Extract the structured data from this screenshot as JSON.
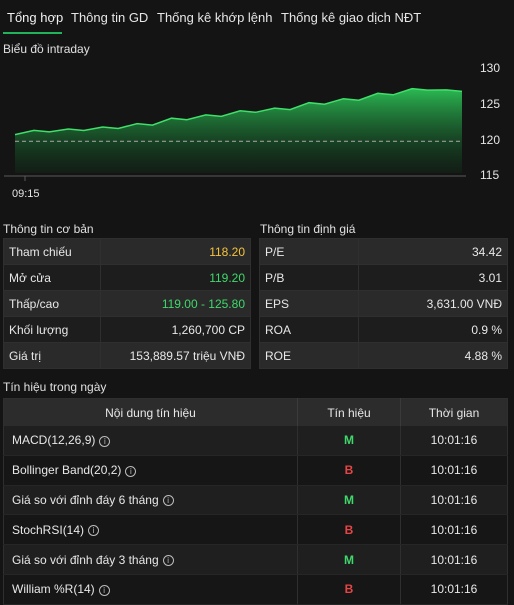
{
  "tabs": [
    {
      "label": "Tổng hợp",
      "active": true
    },
    {
      "label": "Thông tin GD",
      "active": false
    },
    {
      "label": "Thống kê khớp lệnh",
      "active": false
    },
    {
      "label": "Thống kê giao dịch NĐT",
      "active": false
    }
  ],
  "chart_title": "Biểu đồ intraday",
  "chart_data": {
    "type": "area",
    "title": "",
    "x_tick_labels": [
      "09:15"
    ],
    "y_tick_labels": [
      "130",
      "125",
      "120",
      "115"
    ],
    "ylim": [
      113.5,
      131
    ],
    "reference_line": 118.2,
    "series": [
      {
        "values": [
          119.2,
          119.6,
          119.8,
          120.1,
          120.6,
          121.4,
          121.9,
          122.5,
          122.9,
          123.7,
          124.3,
          125.1,
          125.8,
          125.6
        ]
      }
    ],
    "colors": {
      "area": "#2ecc5a",
      "line": "#3ee06a",
      "reference": "#9a9a9a"
    }
  },
  "basic_info": {
    "title": "Thông tin cơ bản",
    "rows": [
      {
        "label": "Tham chiếu",
        "value": "118.20"
      },
      {
        "label": "Mở cửa",
        "value": "119.20"
      },
      {
        "label": "Thấp/cao",
        "value": "119.00 - 125.80"
      },
      {
        "label": "Khối lượng",
        "value": "1,260,700 CP"
      },
      {
        "label": "Giá trị",
        "value": "153,889.57 triệu VNĐ"
      }
    ]
  },
  "valuation": {
    "title": "Thông tin định giá",
    "rows": [
      {
        "label": "P/E",
        "value": "34.42"
      },
      {
        "label": "P/B",
        "value": "3.01"
      },
      {
        "label": "EPS",
        "value": "3,631.00 VNĐ"
      },
      {
        "label": "ROA",
        "value": "0.9 %"
      },
      {
        "label": "ROE",
        "value": "4.88 %"
      }
    ]
  },
  "signals": {
    "title": "Tín hiệu trong ngày",
    "headers": [
      "Nội dung tín hiệu",
      "Tín hiệu",
      "Thời gian"
    ],
    "info_glyph": "i",
    "rows": [
      {
        "name": "MACD(12,26,9)",
        "signal": "M",
        "time": "10:01:16"
      },
      {
        "name": "Bollinger Band(20,2)",
        "signal": "B",
        "time": "10:01:16"
      },
      {
        "name": "Giá so với đỉnh đáy 6 tháng",
        "signal": "M",
        "time": "10:01:16"
      },
      {
        "name": "StochRSI(14)",
        "signal": "B",
        "time": "10:01:16"
      },
      {
        "name": "Giá so với đỉnh đáy 3 tháng",
        "signal": "M",
        "time": "10:01:16"
      },
      {
        "name": "William %R(14)",
        "signal": "B",
        "time": "10:01:16"
      }
    ]
  }
}
